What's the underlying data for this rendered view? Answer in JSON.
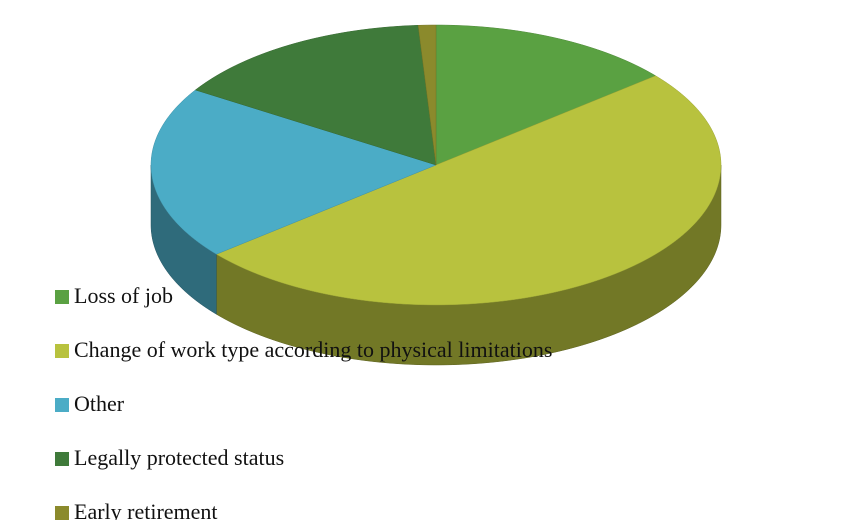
{
  "chart_data": {
    "type": "pie",
    "categories": [
      "Loss of job",
      "Change of work type according to physical limitations",
      "Other",
      "Legally protected status",
      "Early retirement"
    ],
    "values": [
      14,
      50,
      20,
      15,
      1
    ],
    "colors": [
      "#5aa142",
      "#b8c23e",
      "#4bacc6",
      "#3f7a3a",
      "#8b8a2c"
    ],
    "legend": "left"
  }
}
